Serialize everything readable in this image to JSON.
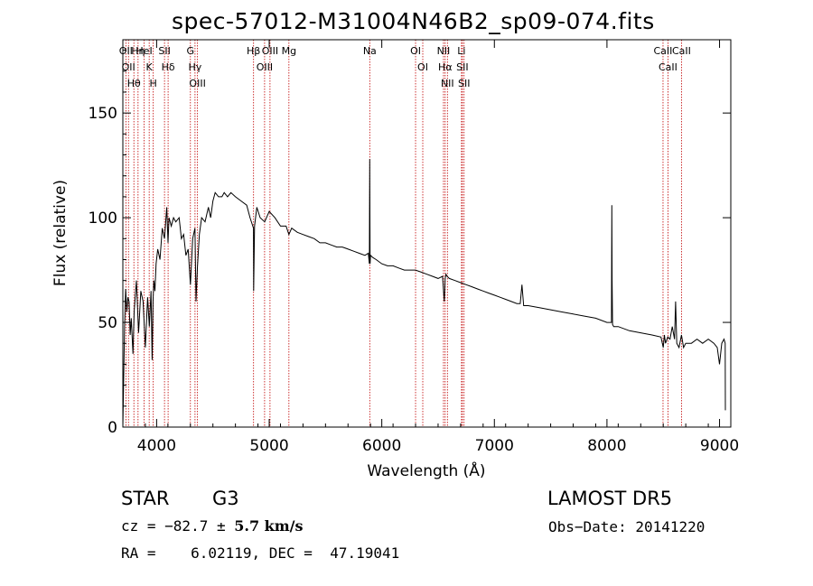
{
  "chart_data": {
    "type": "line",
    "title": "spec-57012-M31004N46B2_sp09-074.fits",
    "xlabel": "Wavelength (Å)",
    "ylabel": "Flux (relative)",
    "xlim": [
      3700,
      9100
    ],
    "ylim": [
      0,
      185
    ],
    "x_ticks": [
      4000,
      5000,
      6000,
      7000,
      8000,
      9000
    ],
    "y_ticks": [
      0,
      50,
      100,
      150
    ],
    "x_tick_labels": [
      "4000",
      "5000",
      "6000",
      "7000",
      "8000",
      "9000"
    ],
    "y_tick_labels": [
      "0",
      "50",
      "100",
      "150"
    ],
    "grid": false,
    "series": [
      {
        "x": [
          3700,
          3715,
          3725,
          3735,
          3745,
          3755,
          3765,
          3775,
          3790,
          3800,
          3820,
          3840,
          3860,
          3880,
          3900,
          3920,
          3935,
          3950,
          3960,
          3968,
          3975,
          3985,
          3995,
          4010,
          4030,
          4050,
          4070,
          4090,
          4101,
          4110,
          4130,
          4150,
          4170,
          4200,
          4220,
          4240,
          4260,
          4280,
          4300,
          4320,
          4340,
          4350,
          4362,
          4380,
          4400,
          4430,
          4460,
          4480,
          4500,
          4520,
          4550,
          4580,
          4600,
          4630,
          4660,
          4700,
          4750,
          4800,
          4830,
          4860,
          4862,
          4870,
          4890,
          4920,
          4960,
          5000,
          5050,
          5100,
          5150,
          5175,
          5200,
          5250,
          5300,
          5350,
          5400,
          5450,
          5500,
          5550,
          5600,
          5650,
          5700,
          5750,
          5800,
          5850,
          5880,
          5890,
          5893,
          5896,
          5900,
          5920,
          5950,
          6000,
          6050,
          6100,
          6150,
          6200,
          6250,
          6300,
          6350,
          6400,
          6450,
          6500,
          6540,
          6555,
          6563,
          6570,
          6580,
          6600,
          6650,
          6700,
          6750,
          6800,
          6850,
          6900,
          6950,
          7000,
          7050,
          7100,
          7150,
          7200,
          7230,
          7245,
          7260,
          7280,
          7300,
          7400,
          7500,
          7600,
          7700,
          7800,
          7900,
          8000,
          8030,
          8040,
          8043,
          8046,
          8050,
          8060,
          8100,
          8200,
          8300,
          8400,
          8480,
          8500,
          8510,
          8520,
          8540,
          8560,
          8580,
          8600,
          8610,
          8620,
          8640,
          8662,
          8680,
          8700,
          8750,
          8800,
          8850,
          8900,
          8950,
          8980,
          9000,
          9020,
          9040,
          9050,
          9052
        ],
        "y": [
          0,
          48,
          66,
          55,
          62,
          60,
          44,
          52,
          35,
          55,
          70,
          45,
          65,
          60,
          38,
          62,
          48,
          65,
          32,
          60,
          70,
          65,
          78,
          85,
          80,
          95,
          90,
          105,
          88,
          100,
          96,
          100,
          98,
          100,
          90,
          92,
          82,
          85,
          68,
          90,
          95,
          60,
          76,
          92,
          100,
          98,
          105,
          100,
          108,
          112,
          110,
          110,
          112,
          110,
          112,
          110,
          108,
          106,
          100,
          95,
          65,
          96,
          105,
          100,
          98,
          103,
          100,
          96,
          96,
          92,
          95,
          93,
          92,
          91,
          90,
          88,
          88,
          87,
          86,
          86,
          85,
          84,
          83,
          82,
          83,
          78,
          128,
          78,
          82,
          81,
          80,
          78,
          77,
          77,
          76,
          75,
          75,
          75,
          74,
          73,
          72,
          71,
          72,
          60,
          71,
          73,
          72,
          71,
          70,
          69,
          68,
          67,
          66,
          65,
          64,
          63,
          62,
          61,
          60,
          59,
          59,
          68,
          58,
          58,
          58,
          57,
          56,
          55,
          54,
          53,
          52,
          50,
          50,
          50,
          106,
          70,
          49,
          48,
          48,
          46,
          45,
          44,
          43,
          38,
          44,
          40,
          43,
          42,
          48,
          42,
          60,
          40,
          38,
          44,
          38,
          40,
          40,
          42,
          40,
          42,
          40,
          38,
          30,
          40,
          42,
          40,
          8
        ]
      }
    ],
    "line_markers": [
      {
        "wl": 3727,
        "label": "OII"
      },
      {
        "wl": 3750,
        "label": "OII"
      },
      {
        "wl": 3798,
        "label": "Hθ"
      },
      {
        "wl": 3835,
        "label": "Hη"
      },
      {
        "wl": 3889,
        "label": "HeI"
      },
      {
        "wl": 3934,
        "label": "K"
      },
      {
        "wl": 3970,
        "label": "H"
      },
      {
        "wl": 4070,
        "label": "SII"
      },
      {
        "wl": 4102,
        "label": "Hδ"
      },
      {
        "wl": 4300,
        "label": "G"
      },
      {
        "wl": 4341,
        "label": "Hγ"
      },
      {
        "wl": 4363,
        "label": "OIII"
      },
      {
        "wl": 4861,
        "label": "Hβ"
      },
      {
        "wl": 4959,
        "label": "OIII"
      },
      {
        "wl": 5007,
        "label": "OIII"
      },
      {
        "wl": 5175,
        "label": "Mg"
      },
      {
        "wl": 5893,
        "label": "Na"
      },
      {
        "wl": 6300,
        "label": "OI"
      },
      {
        "wl": 6364,
        "label": "OI"
      },
      {
        "wl": 6548,
        "label": "NII"
      },
      {
        "wl": 6563,
        "label": "Hα"
      },
      {
        "wl": 6583,
        "label": "NII"
      },
      {
        "wl": 6708,
        "label": "Li"
      },
      {
        "wl": 6716,
        "label": "SII"
      },
      {
        "wl": 6731,
        "label": "SII"
      },
      {
        "wl": 8498,
        "label": "CaII"
      },
      {
        "wl": 8542,
        "label": "CaII"
      },
      {
        "wl": 8662,
        "label": "CaII"
      }
    ],
    "marker_color": "#c00000",
    "line_color": "#000000"
  },
  "footer": {
    "class_label": "STAR",
    "subclass": "G3",
    "survey": "LAMOST DR5",
    "cz_prefix": "cz = −82.7 ± ",
    "cz_bold": "5.7 km/s",
    "obs_date": "Obs−Date: 20141220",
    "coords": "RA =    6.02119, DEC =  47.19041"
  }
}
